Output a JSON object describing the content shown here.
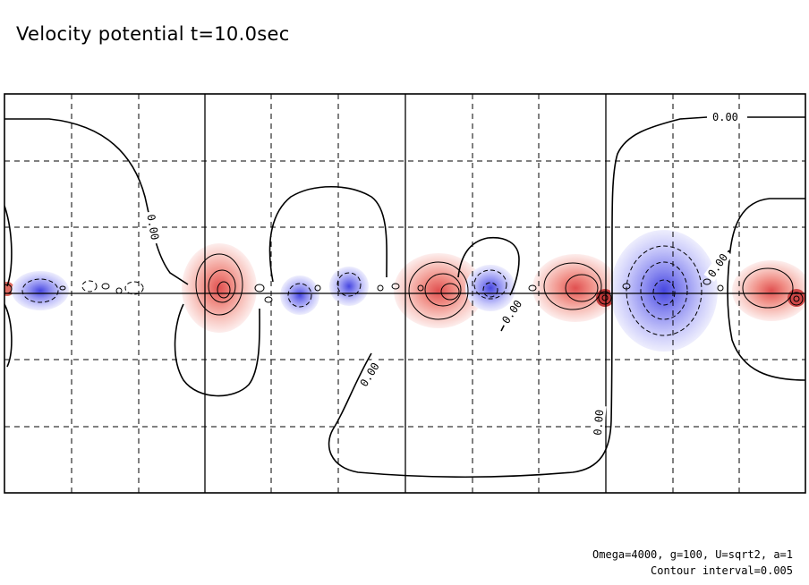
{
  "title": "Velocity potential t=10.0sec",
  "footer": {
    "params": "Omega=4000, g=100, U=sqrt2, a=1",
    "interval": "Contour interval=0.005"
  },
  "chart_data": {
    "type": "contour",
    "field": "Velocity potential",
    "time": "t=10.0sec",
    "contour_interval": 0.005,
    "zero_contour_label": "0.00",
    "grid": "dashed",
    "colors": {
      "positive": "#f07a70",
      "negative": "#7a7af0",
      "line": "#000000"
    },
    "positive_centers_x": [
      0.003,
      0.28,
      0.57,
      0.73,
      0.98
    ],
    "negative_centers_x": [
      0.04,
      0.37,
      0.61,
      0.82
    ]
  }
}
